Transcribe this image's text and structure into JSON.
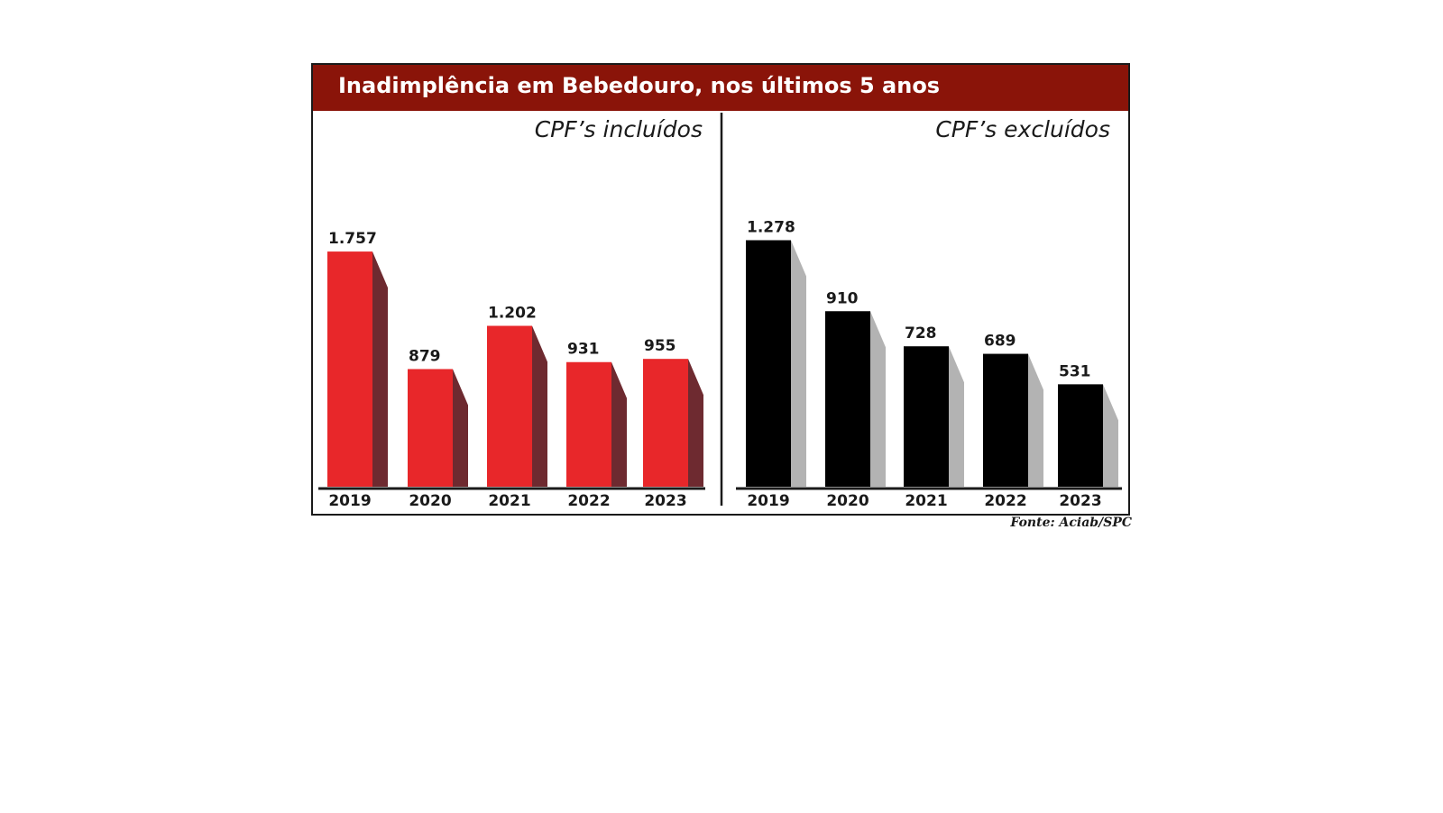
{
  "title": "Inadimplência em Bebedouro, nos últimos 5 anos",
  "source": "Fonte: Aciab/SPC",
  "colors": {
    "title_bar": "#8a1409",
    "included_front": "#e8272a",
    "included_side": "#6e2a30",
    "excluded_front": "#000000",
    "excluded_side": "#b3b3b3"
  },
  "chart_data": [
    {
      "type": "bar",
      "title": "CPF’s incluídos",
      "categories": [
        "2019",
        "2020",
        "2021",
        "2022",
        "2023"
      ],
      "values": [
        1757,
        879,
        1202,
        931,
        955
      ],
      "value_labels": [
        "1.757",
        "879",
        "1.202",
        "931",
        "955"
      ],
      "grid": false
    },
    {
      "type": "bar",
      "title": "CPF’s excluídos",
      "categories": [
        "2019",
        "2020",
        "2021",
        "2022",
        "2023"
      ],
      "values": [
        1278,
        910,
        728,
        689,
        531
      ],
      "value_labels": [
        "1.278",
        "910",
        "728",
        "689",
        "531"
      ],
      "grid": false
    }
  ]
}
